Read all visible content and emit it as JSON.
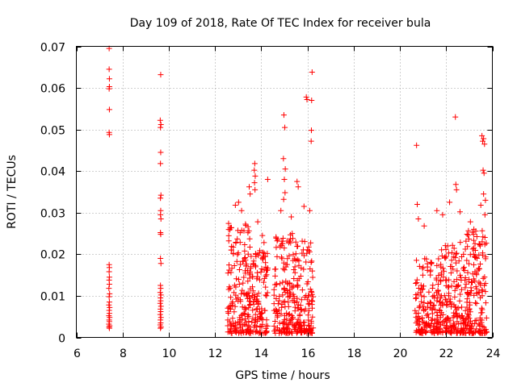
{
  "chart_data": {
    "type": "scatter",
    "title": "Day 109 of 2018, Rate Of TEC Index for receiver bula",
    "xlabel": "GPS time / hours",
    "ylabel": "ROTI / TECUs",
    "xlim": [
      6,
      24
    ],
    "ylim": [
      0,
      0.07
    ],
    "x_ticks": [
      6,
      8,
      10,
      12,
      14,
      16,
      18,
      20,
      22,
      24
    ],
    "y_ticks": [
      0,
      0.01,
      0.02,
      0.03,
      0.04,
      0.05,
      0.06,
      0.07
    ],
    "x_tick_labels": [
      "6",
      "8",
      "10",
      "12",
      "14",
      "16",
      "18",
      "20",
      "22",
      "24"
    ],
    "y_tick_labels": [
      "0",
      "0.01",
      "0.02",
      "0.03",
      "0.04",
      "0.05",
      "0.06",
      "0.07"
    ],
    "grid": true,
    "marker": "+",
    "color": "#ff0000",
    "series": [
      {
        "name": "ROTI",
        "points": [
          [
            7.42,
            0.0695
          ],
          [
            7.42,
            0.0645
          ],
          [
            7.43,
            0.0622
          ],
          [
            7.43,
            0.0603
          ],
          [
            7.42,
            0.0598
          ],
          [
            7.43,
            0.0548
          ],
          [
            7.42,
            0.0493
          ],
          [
            7.43,
            0.0488
          ],
          [
            7.42,
            0.0175
          ],
          [
            7.43,
            0.0168
          ],
          [
            7.42,
            0.0158
          ],
          [
            7.43,
            0.0145
          ],
          [
            7.42,
            0.0138
          ],
          [
            7.43,
            0.0128
          ],
          [
            7.41,
            0.0118
          ],
          [
            7.44,
            0.0105
          ],
          [
            7.42,
            0.0098
          ],
          [
            7.43,
            0.0085
          ],
          [
            7.41,
            0.0078
          ],
          [
            7.44,
            0.0072
          ],
          [
            7.42,
            0.0065
          ],
          [
            7.43,
            0.0058
          ],
          [
            7.41,
            0.0052
          ],
          [
            7.44,
            0.0048
          ],
          [
            7.42,
            0.0042
          ],
          [
            7.43,
            0.0038
          ],
          [
            7.41,
            0.0032
          ],
          [
            7.44,
            0.0028
          ],
          [
            7.42,
            0.0025
          ],
          [
            7.43,
            0.0022
          ],
          [
            9.65,
            0.0632
          ],
          [
            9.63,
            0.0522
          ],
          [
            9.66,
            0.0512
          ],
          [
            9.64,
            0.0505
          ],
          [
            9.65,
            0.0445
          ],
          [
            9.64,
            0.0418
          ],
          [
            9.66,
            0.0342
          ],
          [
            9.64,
            0.0335
          ],
          [
            9.65,
            0.0305
          ],
          [
            9.64,
            0.0295
          ],
          [
            9.66,
            0.0285
          ],
          [
            9.64,
            0.0252
          ],
          [
            9.65,
            0.0248
          ],
          [
            9.64,
            0.019
          ],
          [
            9.66,
            0.0178
          ],
          [
            9.64,
            0.0125
          ],
          [
            9.65,
            0.0118
          ],
          [
            9.63,
            0.0108
          ],
          [
            9.66,
            0.0102
          ],
          [
            9.64,
            0.0095
          ],
          [
            9.65,
            0.0088
          ],
          [
            9.63,
            0.0082
          ],
          [
            9.66,
            0.0075
          ],
          [
            9.64,
            0.0068
          ],
          [
            9.65,
            0.0062
          ],
          [
            9.63,
            0.0055
          ],
          [
            9.66,
            0.0048
          ],
          [
            9.64,
            0.0042
          ],
          [
            9.65,
            0.0035
          ],
          [
            9.63,
            0.003
          ],
          [
            9.66,
            0.0025
          ],
          [
            9.64,
            0.0022
          ],
          [
            13.72,
            0.0418
          ],
          [
            13.7,
            0.0402
          ],
          [
            13.74,
            0.0388
          ],
          [
            13.71,
            0.0372
          ],
          [
            13.73,
            0.0355
          ],
          [
            13.02,
            0.0325
          ],
          [
            12.88,
            0.0318
          ],
          [
            13.15,
            0.0305
          ],
          [
            13.85,
            0.0278
          ],
          [
            13.48,
            0.0362
          ],
          [
            13.52,
            0.0345
          ],
          [
            14.05,
            0.0245
          ],
          [
            14.28,
            0.038
          ],
          [
            14.12,
            0.0228
          ],
          [
            14.98,
            0.0535
          ],
          [
            15.02,
            0.0505
          ],
          [
            14.96,
            0.043
          ],
          [
            15.04,
            0.0405
          ],
          [
            15.0,
            0.038
          ],
          [
            15.03,
            0.0348
          ],
          [
            14.97,
            0.0332
          ],
          [
            15.95,
            0.0578
          ],
          [
            15.98,
            0.0572
          ],
          [
            16.2,
            0.0638
          ],
          [
            16.18,
            0.057
          ],
          [
            16.17,
            0.0498
          ],
          [
            16.16,
            0.0472
          ],
          [
            15.55,
            0.0375
          ],
          [
            15.6,
            0.0362
          ],
          [
            15.85,
            0.0315
          ],
          [
            16.1,
            0.0305
          ],
          [
            14.85,
            0.0305
          ],
          [
            15.3,
            0.029
          ],
          [
            20.72,
            0.0462
          ],
          [
            20.75,
            0.032
          ],
          [
            20.8,
            0.0285
          ],
          [
            21.05,
            0.0268
          ],
          [
            21.6,
            0.0305
          ],
          [
            21.85,
            0.0295
          ],
          [
            22.15,
            0.0325
          ],
          [
            22.4,
            0.053
          ],
          [
            22.42,
            0.0368
          ],
          [
            22.45,
            0.0355
          ],
          [
            22.6,
            0.0302
          ],
          [
            23.05,
            0.0278
          ],
          [
            23.2,
            0.026
          ],
          [
            23.55,
            0.0485
          ],
          [
            23.62,
            0.0478
          ],
          [
            23.58,
            0.0472
          ],
          [
            23.66,
            0.0465
          ],
          [
            23.6,
            0.0402
          ],
          [
            23.64,
            0.0395
          ],
          [
            23.62,
            0.0345
          ],
          [
            23.7,
            0.033
          ],
          [
            23.5,
            0.0318
          ],
          [
            23.68,
            0.0295
          ]
        ],
        "dense_clusters": [
          {
            "x_range": [
              12.55,
              13.55
            ],
            "y_range": [
              0.001,
              0.028
            ],
            "count": 180
          },
          {
            "x_range": [
              13.55,
              14.3
            ],
            "y_range": [
              0.001,
              0.021
            ],
            "count": 110
          },
          {
            "x_range": [
              14.55,
              15.45
            ],
            "y_range": [
              0.001,
              0.025
            ],
            "count": 150
          },
          {
            "x_range": [
              15.45,
              16.25
            ],
            "y_range": [
              0.001,
              0.024
            ],
            "count": 130
          },
          {
            "x_range": [
              20.65,
              21.8
            ],
            "y_range": [
              0.001,
              0.019
            ],
            "count": 170
          },
          {
            "x_range": [
              21.8,
              22.8
            ],
            "y_range": [
              0.001,
              0.023
            ],
            "count": 150
          },
          {
            "x_range": [
              22.8,
              23.75
            ],
            "y_range": [
              0.001,
              0.026
            ],
            "count": 170
          }
        ]
      }
    ]
  }
}
